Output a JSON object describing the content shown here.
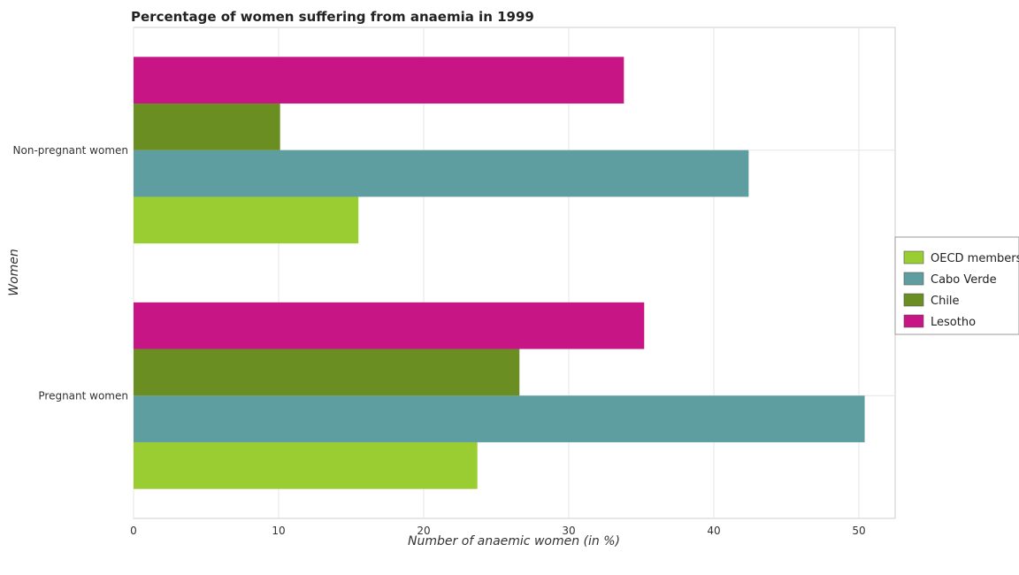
{
  "chart_data": {
    "type": "bar",
    "orientation": "horizontal",
    "title": "Percentage of women suffering from anaemia in 1999",
    "xlabel": "Number of anaemic women (in %)",
    "ylabel": "Women",
    "categories": [
      "Non-pregnant women",
      "Pregnant women"
    ],
    "xlim": [
      0,
      52.5
    ],
    "xticks": [
      0,
      10,
      20,
      30,
      40,
      50
    ],
    "grid": true,
    "legend_position": "right",
    "series": [
      {
        "name": "OECD members",
        "color": "#9acd32",
        "values": [
          15.5,
          23.7
        ]
      },
      {
        "name": "Cabo Verde",
        "color": "#5f9ea0",
        "values": [
          42.4,
          50.4
        ]
      },
      {
        "name": "Chile",
        "color": "#6b8e23",
        "values": [
          10.1,
          26.6
        ]
      },
      {
        "name": "Lesotho",
        "color": "#c71585",
        "values": [
          33.8,
          35.2
        ]
      }
    ]
  }
}
